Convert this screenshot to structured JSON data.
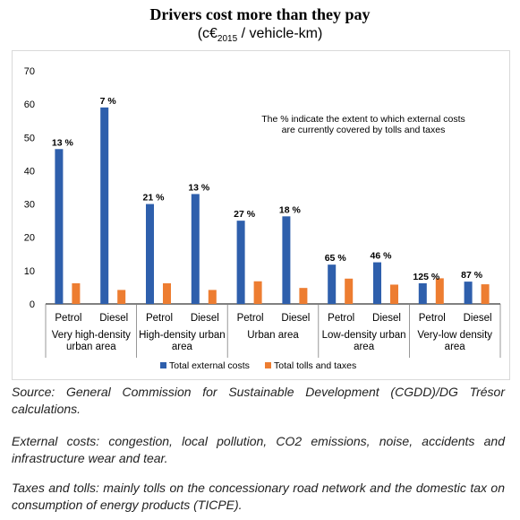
{
  "title": "Drivers cost more than they pay",
  "subtitle": {
    "prefix": "(c€",
    "sub": "2015",
    "suffix": " / vehicle-km)"
  },
  "chart_data": {
    "type": "bar",
    "title": "Drivers cost more than they pay",
    "subtitle": "(c€2015 / vehicle-km)",
    "ylim": [
      0,
      70
    ],
    "yticks": [
      0,
      10,
      20,
      30,
      40,
      50,
      60,
      70
    ],
    "grid": false,
    "legend_position": "bottom",
    "annotation": [
      "The % indicate  the extent to which external costs",
      "are currently covered by tolls and taxes"
    ],
    "groups": [
      {
        "label": [
          "Very high-density",
          "urban area"
        ],
        "categories": [
          "Petrol",
          "Diesel"
        ]
      },
      {
        "label": [
          "High-density urban",
          "area"
        ],
        "categories": [
          "Petrol",
          "Diesel"
        ]
      },
      {
        "label": [
          "Urban area"
        ],
        "categories": [
          "Petrol",
          "Diesel"
        ]
      },
      {
        "label": [
          "Low-density urban",
          "area"
        ],
        "categories": [
          "Petrol",
          "Diesel"
        ]
      },
      {
        "label": [
          "Very-low density",
          "area"
        ],
        "categories": [
          "Petrol",
          "Diesel"
        ]
      }
    ],
    "categories": [
      "Petrol",
      "Diesel",
      "Petrol",
      "Diesel",
      "Petrol",
      "Diesel",
      "Petrol",
      "Diesel",
      "Petrol",
      "Diesel"
    ],
    "series": [
      {
        "name": "Total external costs",
        "color": "#2e5fac",
        "values": [
          46.5,
          59,
          30,
          33,
          25,
          26.3,
          11.8,
          12.5,
          6.2,
          6.7
        ]
      },
      {
        "name": "Total tolls and taxes",
        "color": "#ed7d31",
        "values": [
          6.2,
          4.2,
          6.2,
          4.2,
          6.8,
          4.8,
          7.6,
          5.8,
          7.7,
          5.9
        ]
      }
    ],
    "data_labels": [
      "13 %",
      "7 %",
      "21 %",
      "13 %",
      "27 %",
      "18 %",
      "65 %",
      "46 %",
      "125 %",
      "87 %"
    ]
  },
  "footnotes": {
    "source": "Source: General Commission for Sustainable Development (CGDD)/DG Trésor calculations.",
    "external_costs": "External costs: congestion, local pollution, CO2 emissions, noise, accidents and infrastructure wear and tear.",
    "taxes_tolls": "Taxes and tolls: mainly tolls on the concessionary road network and the domestic tax on consumption of energy products (TICPE)."
  }
}
